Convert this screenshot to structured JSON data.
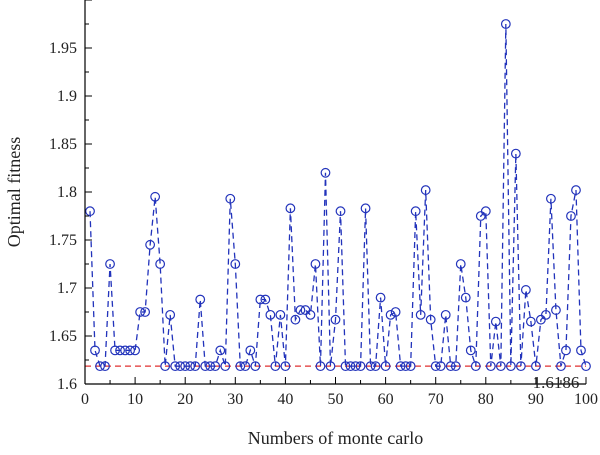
{
  "chart_data": {
    "type": "line",
    "title": "",
    "xlabel": "Numbers of monte carlo",
    "ylabel": "Optimal fitness",
    "xlim": [
      0,
      100
    ],
    "ylim": [
      1.6,
      2.0
    ],
    "xticks": [
      0,
      10,
      20,
      30,
      40,
      50,
      60,
      70,
      80,
      90,
      100
    ],
    "yticks": [
      1.6,
      1.65,
      1.7,
      1.75,
      1.8,
      1.85,
      1.9,
      1.95
    ],
    "ytick_labels": [
      "1.6",
      "1.65",
      "1.7",
      "1.75",
      "1.8",
      "1.85",
      "1.9",
      "1.95"
    ],
    "grid": false,
    "series": [
      {
        "style": "dashed line with open circle markers",
        "color": "#2233bb",
        "x": [
          1,
          2,
          3,
          4,
          5,
          6,
          7,
          8,
          9,
          10,
          11,
          12,
          13,
          14,
          15,
          16,
          17,
          18,
          19,
          20,
          21,
          22,
          23,
          24,
          25,
          26,
          27,
          28,
          29,
          30,
          31,
          32,
          33,
          34,
          35,
          36,
          37,
          38,
          39,
          40,
          41,
          42,
          43,
          44,
          45,
          46,
          47,
          48,
          49,
          50,
          51,
          52,
          53,
          54,
          55,
          56,
          57,
          58,
          59,
          60,
          61,
          62,
          63,
          64,
          65,
          66,
          67,
          68,
          69,
          70,
          71,
          72,
          73,
          74,
          75,
          76,
          77,
          78,
          79,
          80,
          81,
          82,
          83,
          84,
          85,
          86,
          87,
          88,
          89,
          90,
          91,
          92,
          93,
          94,
          95,
          96,
          97,
          98,
          99,
          100
        ],
        "y": [
          1.78,
          1.635,
          1.6186,
          1.6186,
          1.725,
          1.635,
          1.635,
          1.635,
          1.635,
          1.635,
          1.675,
          1.675,
          1.745,
          1.795,
          1.725,
          1.6186,
          1.672,
          1.6186,
          1.6186,
          1.6186,
          1.6186,
          1.6186,
          1.688,
          1.6186,
          1.6186,
          1.6186,
          1.635,
          1.6186,
          1.793,
          1.725,
          1.6186,
          1.6186,
          1.635,
          1.6186,
          1.688,
          1.688,
          1.672,
          1.6186,
          1.672,
          1.6186,
          1.783,
          1.667,
          1.677,
          1.677,
          1.672,
          1.725,
          1.6186,
          1.82,
          1.6186,
          1.667,
          1.78,
          1.6186,
          1.6186,
          1.6186,
          1.6186,
          1.783,
          1.6186,
          1.6186,
          1.69,
          1.6186,
          1.672,
          1.675,
          1.6186,
          1.6186,
          1.6186,
          1.78,
          1.672,
          1.802,
          1.667,
          1.6186,
          1.6186,
          1.672,
          1.6186,
          1.6186,
          1.725,
          1.69,
          1.635,
          1.6186,
          1.775,
          1.78,
          1.6186,
          1.665,
          1.6186,
          1.975,
          1.6186,
          1.84,
          1.6186,
          1.698,
          1.665,
          1.6186,
          1.667,
          1.672,
          1.793,
          1.677,
          1.6186,
          1.635,
          1.775,
          1.802,
          1.635,
          1.6186
        ]
      }
    ],
    "reference_line": {
      "y": 1.6186,
      "color": "#e03030",
      "style": "dashed",
      "label": "1.6186"
    }
  }
}
